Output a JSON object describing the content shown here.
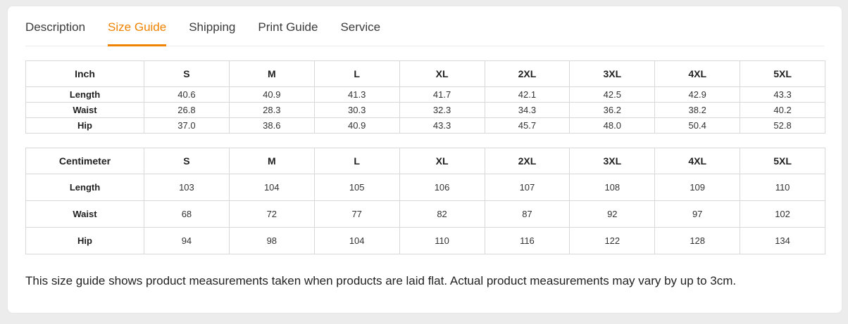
{
  "tabs": [
    {
      "label": "Description",
      "active": false
    },
    {
      "label": "Size Guide",
      "active": true
    },
    {
      "label": "Shipping",
      "active": false
    },
    {
      "label": "Print Guide",
      "active": false
    },
    {
      "label": "Service",
      "active": false
    }
  ],
  "colors": {
    "accent_orange": "#ef8200",
    "tab_text": "#3b3b3b",
    "table_border": "#d8d8d8",
    "card_background": "#ffffff",
    "page_background": "#ececec"
  },
  "size_tables": [
    {
      "unit": "Inch",
      "sizes": [
        "S",
        "M",
        "L",
        "XL",
        "2XL",
        "3XL",
        "4XL",
        "5XL"
      ],
      "rows": [
        {
          "label": "Length",
          "values": [
            "40.6",
            "40.9",
            "41.3",
            "41.7",
            "42.1",
            "42.5",
            "42.9",
            "43.3"
          ]
        },
        {
          "label": "Waist",
          "values": [
            "26.8",
            "28.3",
            "30.3",
            "32.3",
            "34.3",
            "36.2",
            "38.2",
            "40.2"
          ]
        },
        {
          "label": "Hip",
          "values": [
            "37.0",
            "38.6",
            "40.9",
            "43.3",
            "45.7",
            "48.0",
            "50.4",
            "52.8"
          ]
        }
      ]
    },
    {
      "unit": "Centimeter",
      "sizes": [
        "S",
        "M",
        "L",
        "XL",
        "2XL",
        "3XL",
        "4XL",
        "5XL"
      ],
      "rows": [
        {
          "label": "Length",
          "values": [
            "103",
            "104",
            "105",
            "106",
            "107",
            "108",
            "109",
            "110"
          ]
        },
        {
          "label": "Waist",
          "values": [
            "68",
            "72",
            "77",
            "82",
            "87",
            "92",
            "97",
            "102"
          ]
        },
        {
          "label": "Hip",
          "values": [
            "94",
            "98",
            "104",
            "110",
            "116",
            "122",
            "128",
            "134"
          ]
        }
      ]
    }
  ],
  "note": "This size guide shows product measurements taken when products are laid flat. Actual product measurements may vary by up to 3cm."
}
